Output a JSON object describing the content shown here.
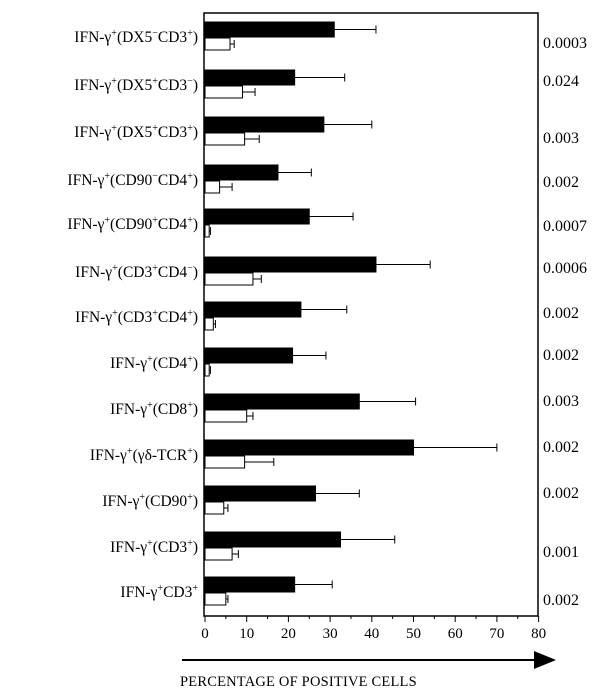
{
  "chart_data": {
    "type": "bar",
    "orientation": "horizontal",
    "categories": [
      "IFN-γ⁺(DX5⁻CD3⁺)",
      "IFN-γ⁺(DX5⁺CD3⁻)",
      "IFN-γ⁺(DX5⁺CD3⁺)",
      "IFN-γ⁺(CD90⁻CD4⁺)",
      "IFN-γ⁺(CD90⁺CD4⁺)",
      "IFN-γ⁺(CD3⁺CD4⁻)",
      "IFN-γ⁺(CD3⁺CD4⁺)",
      "IFN-γ⁺(CD4⁺)",
      "IFN-γ⁺(CD8⁺)",
      "IFN-γ⁺(γδ-TCR⁺)",
      "IFN-γ⁺(CD90⁺)",
      "IFN-γ⁺(CD3⁺)",
      "IFN-γ⁺CD3⁺"
    ],
    "series": [
      {
        "color": "#000000",
        "values": [
          31,
          21.5,
          28.5,
          17.5,
          25,
          41,
          23,
          21,
          37,
          50,
          26.5,
          32.5,
          21.5
        ],
        "errors": [
          10,
          12,
          11.5,
          8,
          10.5,
          13,
          11,
          8,
          13.5,
          20,
          10.5,
          13,
          9
        ]
      },
      {
        "color": "#ffffff",
        "values": [
          6,
          9,
          9.5,
          3.5,
          1,
          11.5,
          2,
          1,
          10,
          9.5,
          4.5,
          6.5,
          5
        ],
        "errors": [
          1,
          3,
          3.5,
          3,
          0.3,
          2,
          0.5,
          0.3,
          1.5,
          7,
          1,
          1.5,
          0.5
        ]
      }
    ],
    "p_values": [
      "0.0003",
      "0.024",
      "0.003",
      "0.002",
      "0.0007",
      "0.0006",
      "0.002",
      "0.002",
      "0.003",
      "0.002",
      "0.002",
      "0.001",
      "0.002"
    ],
    "x_ticks": [
      "0",
      "10",
      "20",
      "30",
      "40",
      "50",
      "60",
      "70",
      "80"
    ],
    "xlim": [
      0,
      80
    ],
    "xlabel": "PERCENTAGE OF POSITIVE CELLS",
    "grid": false
  },
  "labels": [
    {
      "pre": "IFN-γ",
      "s1": "+",
      "mid": "(DX5",
      "s2": "−",
      "mid2": "CD3",
      "s3": "+",
      "post": ")"
    },
    {
      "pre": "IFN-γ",
      "s1": "+",
      "mid": "(DX5",
      "s2": "+",
      "mid2": "CD3",
      "s3": "−",
      "post": ")"
    },
    {
      "pre": "IFN-γ",
      "s1": "+",
      "mid": "(DX5",
      "s2": "+",
      "mid2": "CD3",
      "s3": "+",
      "post": ")"
    },
    {
      "pre": "IFN-γ",
      "s1": "+",
      "mid": "(CD90",
      "s2": "−",
      "mid2": "CD4",
      "s3": "+",
      "post": ")"
    },
    {
      "pre": "IFN-γ",
      "s1": "+",
      "mid": "(CD90",
      "s2": "+",
      "mid2": "CD4",
      "s3": "+",
      "post": ")"
    },
    {
      "pre": "IFN-γ",
      "s1": "+",
      "mid": "(CD3",
      "s2": "+",
      "mid2": "CD4",
      "s3": "−",
      "post": ")"
    },
    {
      "pre": "IFN-γ",
      "s1": "+",
      "mid": "(CD3",
      "s2": "+",
      "mid2": "CD4",
      "s3": "+",
      "post": ")"
    },
    {
      "pre": "IFN-γ",
      "s1": "+",
      "mid": "(CD4",
      "s2": "+",
      "mid2": "",
      "s3": "",
      "post": ")"
    },
    {
      "pre": "IFN-γ",
      "s1": "+",
      "mid": "(CD8",
      "s2": "+",
      "mid2": "",
      "s3": "",
      "post": ")"
    },
    {
      "pre": "IFN-γ",
      "s1": "+",
      "mid": "(γδ-TCR",
      "s2": "+",
      "mid2": "",
      "s3": "",
      "post": ")"
    },
    {
      "pre": "IFN-γ",
      "s1": "+",
      "mid": "(CD90",
      "s2": "+",
      "mid2": "",
      "s3": "",
      "post": ")"
    },
    {
      "pre": "IFN-γ",
      "s1": "+",
      "mid": "(CD3",
      "s2": "+",
      "mid2": "",
      "s3": "",
      "post": ")"
    },
    {
      "pre": "IFN-γ",
      "s1": "+",
      "mid": "CD3",
      "s2": "+",
      "mid2": "",
      "s3": "",
      "post": ""
    }
  ]
}
